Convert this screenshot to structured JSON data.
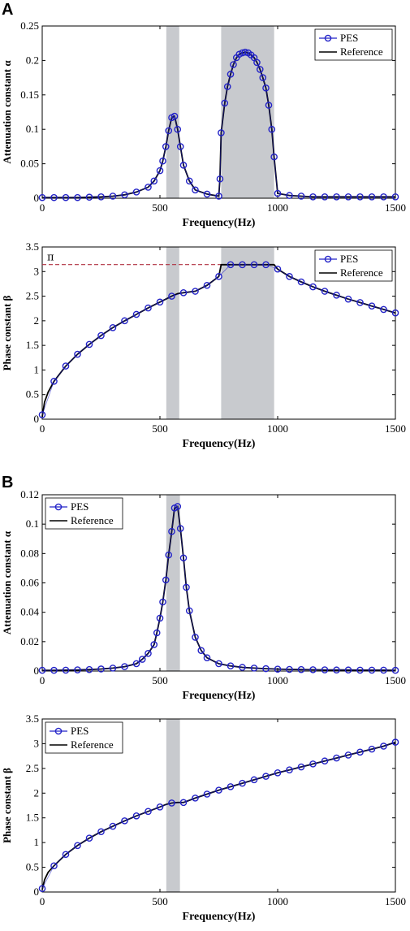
{
  "panel_labels": [
    "A",
    "B"
  ],
  "colors": {
    "marker": "#2323c8",
    "reference": "#000000",
    "band": "#c8cace",
    "pi_line": "#b03040"
  },
  "chart_data": [
    {
      "id": "A-attenuation",
      "panel": "A",
      "type": "line",
      "xlabel": "Frequency(Hz)",
      "ylabel": "Attenuation constant α",
      "xlim": [
        0,
        1500
      ],
      "ylim": [
        0,
        0.25
      ],
      "xticks": [
        "0",
        "500",
        "1000",
        "1500"
      ],
      "yticks": [
        "0",
        "0.05",
        "0.1",
        "0.15",
        "0.2",
        "0.25"
      ],
      "legend": {
        "position": "top-right",
        "entries": [
          "PES",
          "Reference"
        ]
      },
      "bands": [
        [
          527,
          582
        ],
        [
          760,
          985
        ]
      ],
      "series": [
        {
          "name": "PES",
          "style": "markers",
          "x": [
            0,
            50,
            100,
            150,
            200,
            250,
            300,
            350,
            400,
            450,
            475,
            500,
            512,
            525,
            537,
            550,
            562,
            575,
            587,
            600,
            625,
            650,
            700,
            750,
            755,
            760,
            775,
            787,
            800,
            812,
            825,
            837,
            850,
            862,
            875,
            887,
            900,
            912,
            925,
            937,
            950,
            962,
            975,
            985,
            1000,
            1050,
            1100,
            1150,
            1200,
            1250,
            1300,
            1350,
            1400,
            1450,
            1500
          ],
          "y": [
            0.001,
            0.001,
            0.001,
            0.001,
            0.0015,
            0.002,
            0.003,
            0.005,
            0.009,
            0.016,
            0.025,
            0.04,
            0.054,
            0.075,
            0.098,
            0.117,
            0.119,
            0.1,
            0.075,
            0.048,
            0.025,
            0.012,
            0.006,
            0.003,
            0.028,
            0.095,
            0.138,
            0.162,
            0.18,
            0.194,
            0.204,
            0.209,
            0.211,
            0.212,
            0.211,
            0.208,
            0.204,
            0.197,
            0.187,
            0.175,
            0.16,
            0.135,
            0.1,
            0.06,
            0.007,
            0.004,
            0.003,
            0.002,
            0.002,
            0.002,
            0.002,
            0.002,
            0.002,
            0.002,
            0.002
          ]
        },
        {
          "name": "Reference",
          "style": "line",
          "x": [
            0,
            50,
            100,
            150,
            200,
            250,
            300,
            350,
            400,
            450,
            475,
            500,
            512,
            525,
            537,
            550,
            562,
            575,
            587,
            600,
            625,
            650,
            700,
            750,
            755,
            760,
            775,
            787,
            800,
            812,
            825,
            837,
            850,
            862,
            875,
            887,
            900,
            912,
            925,
            937,
            950,
            962,
            975,
            985,
            1000,
            1050,
            1100,
            1150,
            1200,
            1250,
            1300,
            1350,
            1400,
            1450,
            1500
          ],
          "y": [
            0.001,
            0.001,
            0.001,
            0.001,
            0.0015,
            0.002,
            0.003,
            0.005,
            0.009,
            0.016,
            0.025,
            0.04,
            0.054,
            0.075,
            0.098,
            0.117,
            0.119,
            0.1,
            0.075,
            0.048,
            0.025,
            0.012,
            0.006,
            0.003,
            0.028,
            0.095,
            0.138,
            0.162,
            0.18,
            0.194,
            0.204,
            0.209,
            0.211,
            0.212,
            0.211,
            0.208,
            0.204,
            0.197,
            0.187,
            0.175,
            0.16,
            0.135,
            0.1,
            0.06,
            0.007,
            0.004,
            0.003,
            0.002,
            0.002,
            0.002,
            0.002,
            0.002,
            0.002,
            0.002,
            0.002
          ]
        }
      ]
    },
    {
      "id": "A-phase",
      "panel": "A",
      "type": "line",
      "xlabel": "Frequency(Hz)",
      "ylabel": "Phase constant β",
      "xlim": [
        0,
        1500
      ],
      "ylim": [
        0,
        3.5
      ],
      "xticks": [
        "0",
        "500",
        "1000",
        "1500"
      ],
      "yticks": [
        "0",
        "0.5",
        "1",
        "1.5",
        "2",
        "2.5",
        "3",
        "3.5"
      ],
      "legend": {
        "position": "top-right",
        "entries": [
          "PES",
          "Reference"
        ]
      },
      "bands": [
        [
          527,
          582
        ],
        [
          760,
          985
        ]
      ],
      "annotation": {
        "text": "π",
        "value": 3.1416,
        "x_range": [
          0,
          760
        ]
      },
      "series": [
        {
          "name": "PES",
          "style": "markers",
          "x": [
            0,
            50,
            100,
            150,
            200,
            250,
            300,
            350,
            400,
            450,
            500,
            550,
            600,
            650,
            700,
            750,
            800,
            850,
            900,
            950,
            1000,
            1050,
            1100,
            1150,
            1200,
            1250,
            1300,
            1350,
            1400,
            1450,
            1500
          ],
          "y": [
            0.09,
            0.77,
            1.08,
            1.32,
            1.52,
            1.7,
            1.86,
            2.0,
            2.13,
            2.26,
            2.38,
            2.5,
            2.57,
            2.6,
            2.72,
            2.9,
            3.14,
            3.14,
            3.14,
            3.14,
            3.05,
            2.9,
            2.79,
            2.69,
            2.6,
            2.52,
            2.44,
            2.37,
            2.3,
            2.23,
            2.16
          ]
        },
        {
          "name": "Reference",
          "style": "line",
          "x": [
            0,
            10,
            25,
            50,
            100,
            150,
            200,
            250,
            300,
            350,
            400,
            450,
            500,
            525,
            550,
            575,
            600,
            650,
            700,
            750,
            760,
            800,
            850,
            900,
            950,
            985,
            1000,
            1050,
            1100,
            1150,
            1200,
            1250,
            1300,
            1350,
            1400,
            1450,
            1500
          ],
          "y": [
            0.05,
            0.35,
            0.55,
            0.77,
            1.08,
            1.32,
            1.52,
            1.7,
            1.86,
            2.0,
            2.13,
            2.26,
            2.38,
            2.44,
            2.5,
            2.55,
            2.57,
            2.6,
            2.72,
            2.9,
            3.14,
            3.14,
            3.14,
            3.14,
            3.14,
            3.14,
            3.05,
            2.9,
            2.79,
            2.69,
            2.6,
            2.52,
            2.44,
            2.37,
            2.3,
            2.23,
            2.16
          ]
        }
      ]
    },
    {
      "id": "B-attenuation",
      "panel": "B",
      "type": "line",
      "xlabel": "Frequency(Hz)",
      "ylabel": "Attenuation constant α",
      "xlim": [
        0,
        1500
      ],
      "ylim": [
        0,
        0.12
      ],
      "xticks": [
        "0",
        "500",
        "1000",
        "1500"
      ],
      "yticks": [
        "0",
        "0.02",
        "0.04",
        "0.06",
        "0.08",
        "0.1",
        "0.12"
      ],
      "legend": {
        "position": "top-left",
        "entries": [
          "PES",
          "Reference"
        ]
      },
      "bands": [
        [
          527,
          585
        ]
      ],
      "series": [
        {
          "name": "PES",
          "style": "markers",
          "x": [
            0,
            50,
            100,
            150,
            200,
            250,
            300,
            350,
            400,
            425,
            450,
            475,
            487,
            500,
            512,
            525,
            537,
            550,
            562,
            575,
            587,
            600,
            612,
            625,
            650,
            675,
            700,
            750,
            800,
            850,
            900,
            950,
            1000,
            1050,
            1100,
            1150,
            1200,
            1250,
            1300,
            1350,
            1400,
            1450,
            1500
          ],
          "y": [
            0.0005,
            0.0005,
            0.0006,
            0.0008,
            0.001,
            0.0014,
            0.002,
            0.003,
            0.005,
            0.008,
            0.012,
            0.018,
            0.026,
            0.036,
            0.047,
            0.062,
            0.079,
            0.095,
            0.111,
            0.112,
            0.097,
            0.077,
            0.057,
            0.041,
            0.023,
            0.014,
            0.009,
            0.005,
            0.0035,
            0.0025,
            0.002,
            0.0016,
            0.0013,
            0.0011,
            0.001,
            0.0009,
            0.0008,
            0.0007,
            0.0007,
            0.0006,
            0.0006,
            0.0006,
            0.0005
          ]
        },
        {
          "name": "Reference",
          "style": "line",
          "x": [
            0,
            50,
            100,
            150,
            200,
            250,
            300,
            350,
            400,
            425,
            450,
            475,
            487,
            500,
            512,
            525,
            537,
            550,
            562,
            575,
            587,
            600,
            612,
            625,
            650,
            675,
            700,
            750,
            800,
            850,
            900,
            950,
            1000,
            1050,
            1100,
            1150,
            1200,
            1250,
            1300,
            1350,
            1400,
            1450,
            1500
          ],
          "y": [
            0.0005,
            0.0005,
            0.0006,
            0.0008,
            0.001,
            0.0014,
            0.002,
            0.003,
            0.005,
            0.008,
            0.012,
            0.018,
            0.026,
            0.036,
            0.047,
            0.062,
            0.079,
            0.095,
            0.111,
            0.112,
            0.097,
            0.077,
            0.057,
            0.041,
            0.023,
            0.014,
            0.009,
            0.005,
            0.0035,
            0.0025,
            0.002,
            0.0016,
            0.0013,
            0.0011,
            0.001,
            0.0009,
            0.0008,
            0.0007,
            0.0007,
            0.0006,
            0.0006,
            0.0006,
            0.0005
          ]
        }
      ]
    },
    {
      "id": "B-phase",
      "panel": "B",
      "type": "line",
      "xlabel": "Frequency(Hz)",
      "ylabel": "Phase constant β",
      "xlim": [
        0,
        1500
      ],
      "ylim": [
        0,
        3.5
      ],
      "xticks": [
        "0",
        "500",
        "1000",
        "1500"
      ],
      "yticks": [
        "0",
        "0.5",
        "1",
        "1.5",
        "2",
        "2.5",
        "3",
        "3.5"
      ],
      "legend": {
        "position": "top-left",
        "entries": [
          "PES",
          "Reference"
        ]
      },
      "bands": [
        [
          527,
          585
        ]
      ],
      "series": [
        {
          "name": "PES",
          "style": "markers",
          "x": [
            0,
            50,
            100,
            150,
            200,
            250,
            300,
            350,
            400,
            450,
            500,
            550,
            600,
            650,
            700,
            750,
            800,
            850,
            900,
            950,
            1000,
            1050,
            1100,
            1150,
            1200,
            1250,
            1300,
            1350,
            1400,
            1450,
            1500
          ],
          "y": [
            0.07,
            0.53,
            0.76,
            0.94,
            1.09,
            1.22,
            1.33,
            1.44,
            1.54,
            1.63,
            1.72,
            1.8,
            1.81,
            1.9,
            1.98,
            2.06,
            2.13,
            2.2,
            2.27,
            2.34,
            2.41,
            2.47,
            2.53,
            2.59,
            2.65,
            2.71,
            2.77,
            2.83,
            2.89,
            2.95,
            3.03
          ]
        },
        {
          "name": "Reference",
          "style": "line",
          "x": [
            0,
            10,
            25,
            50,
            100,
            150,
            200,
            250,
            300,
            350,
            400,
            450,
            500,
            525,
            550,
            575,
            600,
            650,
            700,
            750,
            800,
            850,
            900,
            950,
            1000,
            1050,
            1100,
            1150,
            1200,
            1250,
            1300,
            1350,
            1400,
            1450,
            1500
          ],
          "y": [
            0.05,
            0.25,
            0.4,
            0.53,
            0.76,
            0.94,
            1.09,
            1.22,
            1.33,
            1.44,
            1.54,
            1.63,
            1.72,
            1.77,
            1.8,
            1.81,
            1.81,
            1.9,
            1.98,
            2.06,
            2.13,
            2.2,
            2.27,
            2.34,
            2.41,
            2.47,
            2.53,
            2.59,
            2.65,
            2.71,
            2.77,
            2.83,
            2.89,
            2.95,
            3.03
          ]
        }
      ]
    }
  ]
}
